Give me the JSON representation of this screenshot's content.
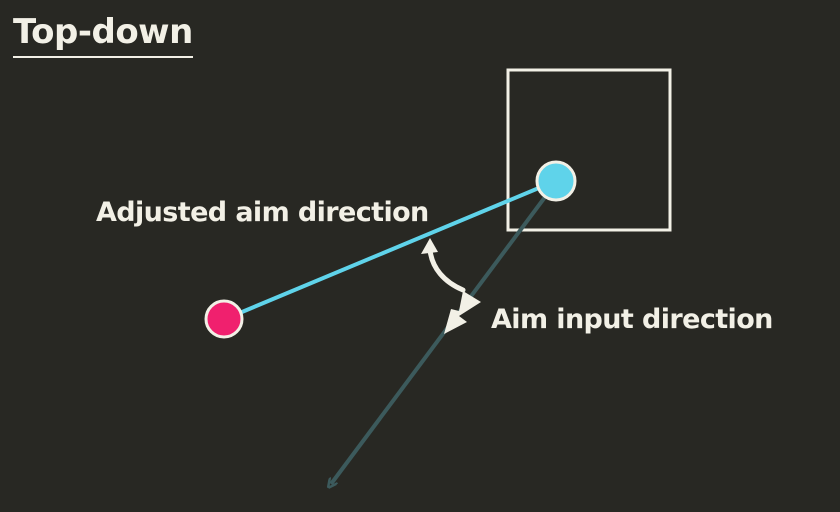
{
  "title": "Top-down",
  "labels": {
    "adjusted_aim": "Adjusted aim direction",
    "aim_input": "Aim input direction"
  },
  "colors": {
    "background": "#282823",
    "text": "#f2f0e6",
    "player": "#5fd3ea",
    "target": "#f0206e",
    "adjusted_line": "#5fd3ea",
    "input_line": "#3c5a5c",
    "box": "#f2f0e6"
  }
}
